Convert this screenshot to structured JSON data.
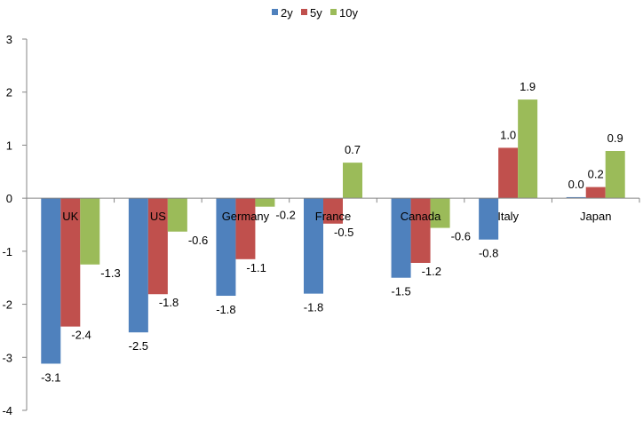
{
  "chart_data": {
    "type": "bar",
    "title": "",
    "xlabel": "",
    "ylabel": "",
    "categories": [
      "UK",
      "US",
      "Germany",
      "France",
      "Canada",
      "Italy",
      "Japan"
    ],
    "series": [
      {
        "name": "2y",
        "color": "#4F81BD",
        "values": [
          -3.12,
          -2.53,
          -1.84,
          -1.8,
          -1.5,
          -0.78,
          0.02
        ],
        "labels": [
          "-3.1",
          "-2.5",
          "-1.8",
          "-1.8",
          "-1.5",
          "-0.8",
          "0.0"
        ]
      },
      {
        "name": "5y",
        "color": "#C0504D",
        "values": [
          -2.42,
          -1.81,
          -1.15,
          -0.48,
          -1.22,
          0.95,
          0.21
        ],
        "labels": [
          "-2.4",
          "-1.8",
          "-1.1",
          "-0.5",
          "-1.2",
          "1.0",
          "0.2"
        ]
      },
      {
        "name": "10y",
        "color": "#9BBB59",
        "values": [
          -1.25,
          -0.63,
          -0.16,
          0.67,
          -0.56,
          1.86,
          0.89
        ],
        "labels": [
          "-1.3",
          "-0.6",
          "-0.2",
          "0.7",
          "-0.6",
          "1.9",
          "0.9"
        ]
      }
    ],
    "ylim": [
      -4,
      3
    ],
    "yticks": [
      "3",
      "2",
      "1",
      "0",
      "-1",
      "-2",
      "-3",
      "-4"
    ],
    "grid": false,
    "legend": "top-center"
  }
}
